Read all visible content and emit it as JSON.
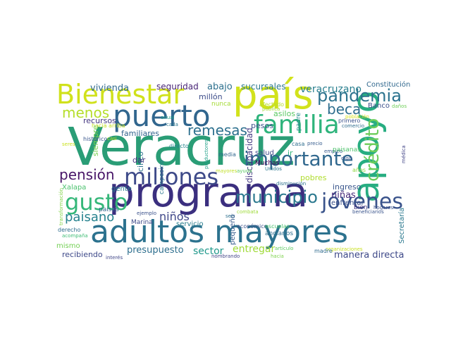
{
  "words": [
    {
      "text": "Veracruz",
      "color": "#2a9d76"
    },
    {
      "text": "programa",
      "color": "#3b2f7f"
    },
    {
      "text": "adultos mayores",
      "color": "#2c728e"
    },
    {
      "text": "apoyo",
      "color": "#27ad81"
    },
    {
      "text": "país",
      "color": "#d2e21b"
    },
    {
      "text": "puerto",
      "color": "#31668e"
    },
    {
      "text": "Bienestar",
      "color": "#d0e11c"
    },
    {
      "text": "familia",
      "color": "#2fb47c"
    },
    {
      "text": "millones",
      "color": "#3e4a89"
    },
    {
      "text": "pandemia",
      "color": "#2c738e"
    },
    {
      "text": "gusto",
      "color": "#35b779"
    },
    {
      "text": "importante",
      "color": "#31688e"
    },
    {
      "text": "municipio",
      "color": "#2a788e"
    },
    {
      "text": "jóvenes",
      "color": "#3a538b"
    },
    {
      "text": "crédito",
      "color": "#6ccd5a"
    },
    {
      "text": "remesas",
      "color": "#2d708e"
    },
    {
      "text": "pensión",
      "color": "#481668"
    },
    {
      "text": "beca",
      "color": "#2e6e8e"
    },
    {
      "text": "paisano",
      "color": "#26828e"
    },
    {
      "text": "menos",
      "color": "#b5de2b"
    },
    {
      "text": "veracruzano",
      "color": "#277e8e"
    },
    {
      "text": "niñas",
      "color": "#472a7a"
    },
    {
      "text": "niños",
      "color": "#3f4788"
    },
    {
      "text": "sector",
      "color": "#1f988b"
    },
    {
      "text": "entregar",
      "color": "#a0da39"
    },
    {
      "text": "manera directa",
      "color": "#3e4989"
    },
    {
      "text": "presupuesto",
      "color": "#2e6f8e"
    },
    {
      "text": "discapacidad",
      "color": "#443a83"
    },
    {
      "text": "vivienda",
      "color": "#306a8e"
    },
    {
      "text": "seguridad",
      "color": "#482576"
    },
    {
      "text": "abajo",
      "color": "#2d708e"
    },
    {
      "text": "sucursales",
      "color": "#2a788e"
    },
    {
      "text": "Constitución",
      "color": "#31688e"
    },
    {
      "text": "millón",
      "color": "#3d4d8a"
    },
    {
      "text": "nunca",
      "color": "#a5db36"
    },
    {
      "text": "Banco",
      "color": "#3c508b"
    },
    {
      "text": "daños",
      "color": "#6ece58"
    },
    {
      "text": "padre",
      "color": "#238a8d"
    },
    {
      "text": "asilos",
      "color": "#5ac864"
    },
    {
      "text": "afectado",
      "color": "#b8de29"
    },
    {
      "text": "pública",
      "color": "#a2da37"
    },
    {
      "text": "población",
      "color": "#d8e219"
    },
    {
      "text": "primero",
      "color": "#3b528b"
    },
    {
      "text": "comercio",
      "color": "#2f6c8e"
    },
    {
      "text": "recursos",
      "color": "#453781"
    },
    {
      "text": "hacia arriba",
      "color": "#c2df23"
    },
    {
      "text": "familiares",
      "color": "#33638d"
    },
    {
      "text": "pesos",
      "color": "#3b528b"
    },
    {
      "text": "cada",
      "color": "#2a768e"
    },
    {
      "text": "anual",
      "color": "#1fa088"
    },
    {
      "text": "siempre",
      "color": "#7ad151"
    },
    {
      "text": "directo",
      "color": "#25858e"
    },
    {
      "text": "casa",
      "color": "#2e6d8e"
    },
    {
      "text": "precio",
      "color": "#365c8d"
    },
    {
      "text": "empleo",
      "color": "#38598c"
    },
    {
      "text": "médica",
      "color": "#414487"
    },
    {
      "text": "paisanas",
      "color": "#4ec36b"
    },
    {
      "text": "salud",
      "color": "#3f4889"
    },
    {
      "text": "ir",
      "color": "#31b57b"
    },
    {
      "text": "cinco",
      "color": "#2d718e"
    },
    {
      "text": "dar",
      "color": "#46307e"
    },
    {
      "text": "campesino",
      "color": "#2a788e"
    },
    {
      "text": "productores",
      "color": "#1fa088"
    },
    {
      "text": "media",
      "color": "#31688e"
    },
    {
      "text": "ayuda",
      "color": "#5cc863"
    },
    {
      "text": "Muchas",
      "color": "#440154"
    },
    {
      "text": "Unidos",
      "color": "#2a778e"
    },
    {
      "text": "pobres",
      "color": "#b0dd2f"
    },
    {
      "text": "digo",
      "color": "#39568c"
    },
    {
      "text": "años",
      "color": "#90d743"
    },
    {
      "text": "mayores",
      "color": "#c0df25"
    },
    {
      "text": "disminución",
      "color": "#2d708e"
    },
    {
      "text": "ingreso",
      "color": "#39568c"
    },
    {
      "text": "gente",
      "color": "#287c8e"
    },
    {
      "text": "Xalapa",
      "color": "#4ac16d"
    },
    {
      "text": "enfrentar",
      "color": "#3b518b"
    },
    {
      "text": "bien",
      "color": "#46327e"
    },
    {
      "text": "hogares",
      "color": "#3b528b"
    },
    {
      "text": "países",
      "color": "#31688e"
    },
    {
      "text": "ejemplo",
      "color": "#3b518b"
    },
    {
      "text": "seis",
      "color": "#2d708e"
    },
    {
      "text": "beneficiarios",
      "color": "#3a548c"
    },
    {
      "text": "Secretaría",
      "color": "#2a788e"
    },
    {
      "text": "servicio",
      "color": "#287d8e"
    },
    {
      "text": "Marina",
      "color": "#3e4a89"
    },
    {
      "text": "pequeño",
      "color": "#375b8d"
    },
    {
      "text": "combata",
      "color": "#9fda3a"
    },
    {
      "text": "derecho",
      "color": "#2e6e8e"
    },
    {
      "text": "económico",
      "color": "#3b518b"
    },
    {
      "text": "escuelas",
      "color": "#4ac16d"
    },
    {
      "text": "organizaciones",
      "color": "#c8e020"
    },
    {
      "text": "transformación",
      "color": "#84d44b"
    },
    {
      "text": "acompaña",
      "color": "#3dbc74"
    },
    {
      "text": "mismo",
      "color": "#74d055"
    },
    {
      "text": "recibiendo",
      "color": "#3e4989"
    },
    {
      "text": "interés",
      "color": "#404688"
    },
    {
      "text": "nombrando",
      "color": "#414487"
    },
    {
      "text": "ancianos",
      "color": "#2e6e8e"
    },
    {
      "text": "artículo",
      "color": "#5ec962"
    },
    {
      "text": "hacia",
      "color": "#7fd34e"
    },
    {
      "text": "madre",
      "color": "#2f6b8e"
    },
    {
      "text": "histórico",
      "color": "#39568c"
    },
    {
      "text": "casi",
      "color": "#bddf26"
    },
    {
      "text": "seres",
      "color": "#cae11f"
    }
  ]
}
